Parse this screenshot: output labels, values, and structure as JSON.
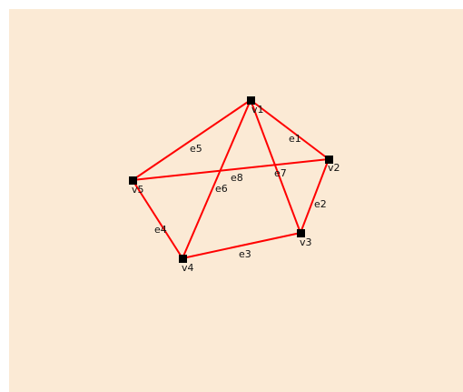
{
  "graph": {
    "vertices": [
      {
        "id": "v1",
        "label": "v1"
      },
      {
        "id": "v2",
        "label": "v2"
      },
      {
        "id": "v3",
        "label": "v3"
      },
      {
        "id": "v4",
        "label": "v4"
      },
      {
        "id": "v5",
        "label": "v5"
      }
    ],
    "edges": [
      {
        "id": "e1",
        "label": "e1",
        "from": "v1",
        "to": "v2"
      },
      {
        "id": "e2",
        "label": "e2",
        "from": "v2",
        "to": "v3"
      },
      {
        "id": "e3",
        "label": "e3",
        "from": "v3",
        "to": "v4"
      },
      {
        "id": "e4",
        "label": "e4",
        "from": "v4",
        "to": "v5"
      },
      {
        "id": "e5",
        "label": "e5",
        "from": "v5",
        "to": "v1"
      },
      {
        "id": "e6",
        "label": "e6",
        "from": "v1",
        "to": "v4"
      },
      {
        "id": "e7",
        "label": "e7",
        "from": "v1",
        "to": "v3"
      },
      {
        "id": "e8",
        "label": "e8",
        "from": "v5",
        "to": "v2"
      }
    ],
    "colors": {
      "background": "#fbead5",
      "edge": "#ff0000",
      "vertex": "#000000"
    }
  }
}
